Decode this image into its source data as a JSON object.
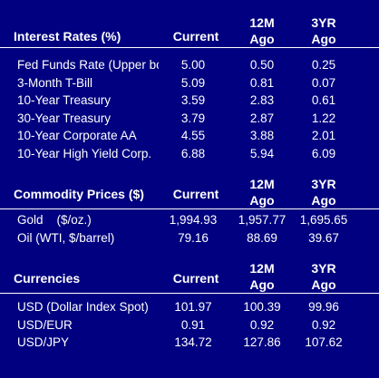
{
  "interest_rates": {
    "title": "Interest Rates (%)",
    "col_current": "Current",
    "col_12m_a": "12M",
    "col_12m_b": "Ago",
    "col_3yr_a": "3YR",
    "col_3yr_b": "Ago",
    "rows": [
      {
        "label": "Fed Funds Rate (Upper bound)",
        "current": "5.00",
        "ago12m": "0.50",
        "ago3yr": "0.25"
      },
      {
        "label": "3-Month T-Bill",
        "current": "5.09",
        "ago12m": "0.81",
        "ago3yr": "0.07"
      },
      {
        "label": "10-Year Treasury",
        "current": "3.59",
        "ago12m": "2.83",
        "ago3yr": "0.61"
      },
      {
        "label": "30-Year Treasury",
        "current": "3.79",
        "ago12m": "2.87",
        "ago3yr": "1.22"
      },
      {
        "label": "10-Year Corporate AA",
        "current": "4.55",
        "ago12m": "3.88",
        "ago3yr": "2.01"
      },
      {
        "label": "10-Year High Yield Corp.",
        "current": "6.88",
        "ago12m": "5.94",
        "ago3yr": "6.09"
      }
    ]
  },
  "commodity_prices": {
    "title": "Commodity Prices ($)",
    "col_current": "Current",
    "col_12m_a": "12M",
    "col_12m_b": "Ago",
    "col_3yr_a": "3YR",
    "col_3yr_b": "Ago",
    "rows": [
      {
        "label": "Gold    ($/oz.)",
        "current": "1,994.93",
        "ago12m": "1,957.77",
        "ago3yr": "1,695.65"
      },
      {
        "label": "Oil (WTI, $/barrel)",
        "current": "79.16",
        "ago12m": "88.69",
        "ago3yr": "39.67"
      }
    ]
  },
  "currencies": {
    "title": "Currencies",
    "col_current": "Current",
    "col_12m_a": "12M",
    "col_12m_b": "Ago",
    "col_3yr_a": "3YR",
    "col_3yr_b": "Ago",
    "rows": [
      {
        "label": "USD (Dollar Index Spot)",
        "current": "101.97",
        "ago12m": "100.39",
        "ago3yr": "99.96"
      },
      {
        "label": "USD/EUR",
        "current": "0.91",
        "ago12m": "0.92",
        "ago3yr": "0.92"
      },
      {
        "label": "USD/JPY",
        "current": "134.72",
        "ago12m": "127.86",
        "ago3yr": "107.62"
      }
    ]
  },
  "colors": {
    "background": "#000080",
    "text": "#ffffff"
  }
}
